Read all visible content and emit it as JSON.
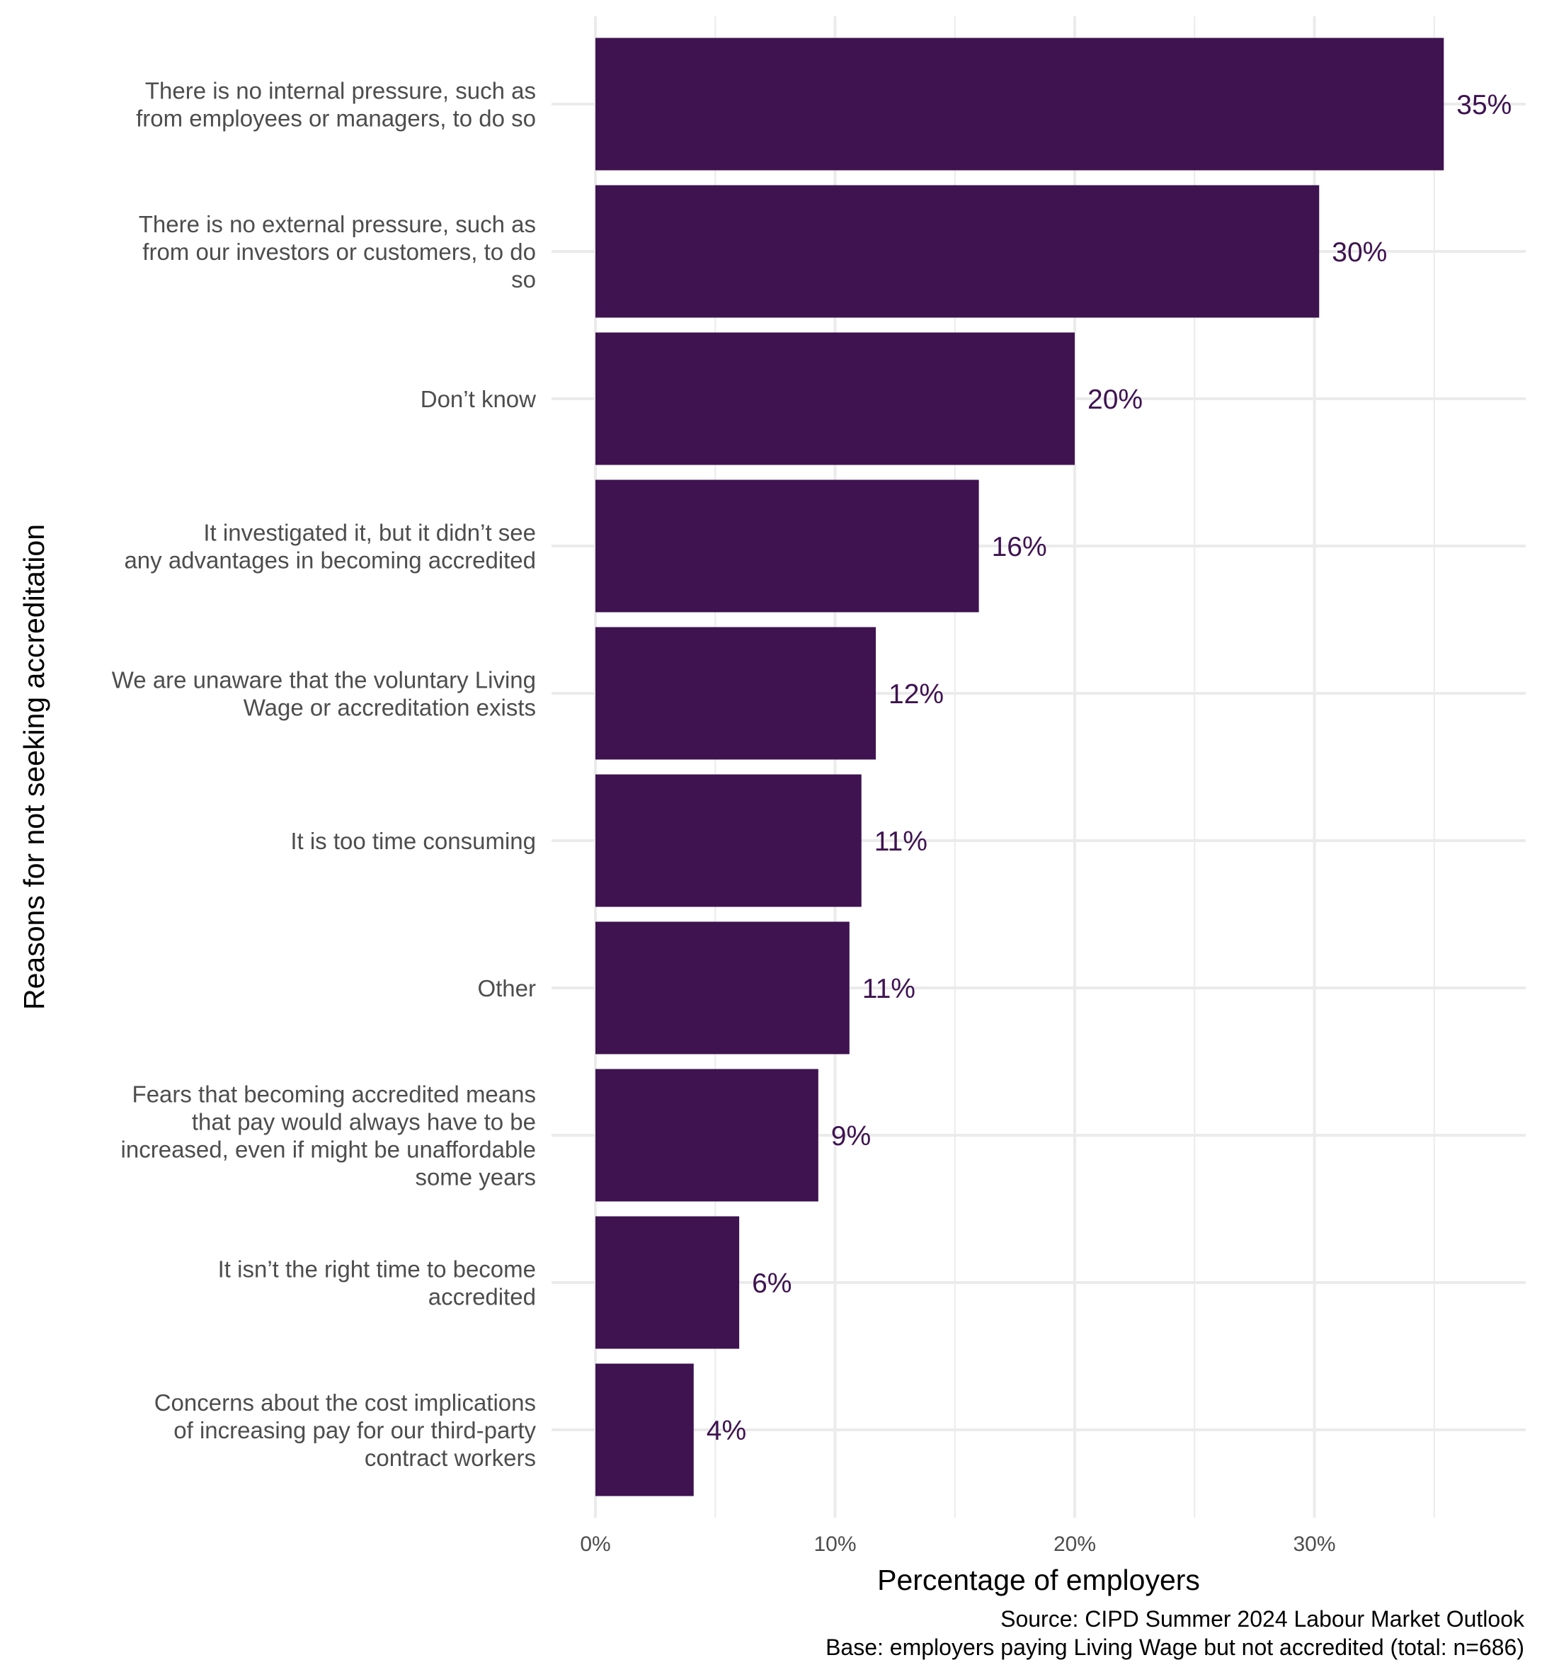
{
  "chart_data": {
    "type": "bar",
    "orientation": "horizontal",
    "title": "",
    "xlabel": "Percentage of employers",
    "ylabel": "Reasons for not seeking accreditation",
    "xlim": [
      0,
      38.5
    ],
    "x_ticks": [
      0,
      10,
      20,
      30
    ],
    "x_tick_labels": [
      "0%",
      "10%",
      "20%",
      "30%"
    ],
    "grid": true,
    "bar_color": "#3e1350",
    "categories": [
      [
        "There is no internal pressure, such as",
        "from employees or managers, to do so"
      ],
      [
        "There is no external pressure, such as",
        "from our investors or customers, to do",
        "so"
      ],
      [
        "Don’t know"
      ],
      [
        "It investigated it, but it didn’t see",
        "any advantages in becoming accredited"
      ],
      [
        "We are unaware that the voluntary Living",
        "Wage or accreditation exists"
      ],
      [
        "It is too time consuming"
      ],
      [
        "Other"
      ],
      [
        "Fears that becoming accredited means",
        "that pay would always have to be",
        "increased, even if might be unaffordable",
        "some years"
      ],
      [
        "It isn’t the right time to become",
        "accredited"
      ],
      [
        "Concerns about the cost implications",
        "of increasing pay for our third-party",
        "contract workers"
      ]
    ],
    "values": [
      35.4,
      30.2,
      20.0,
      16.0,
      11.7,
      11.1,
      10.6,
      9.3,
      6.0,
      4.1
    ],
    "value_labels": [
      "35%",
      "30%",
      "20%",
      "16%",
      "12%",
      "11%",
      "11%",
      "9%",
      "6%",
      "4%"
    ],
    "caption": [
      "Source: CIPD Summer 2024 Labour Market Outlook",
      "Base: employers paying Living Wage but not accredited (total: n=686)"
    ]
  }
}
